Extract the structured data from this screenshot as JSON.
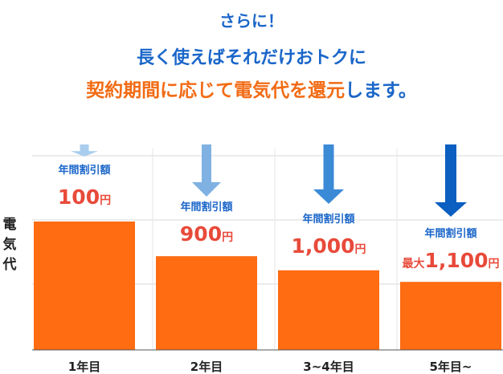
{
  "header": {
    "line1": "さらに！",
    "line2": "長く使えばそれだけおトクに",
    "line3_accent": "契約期間に応じて電気代を還元",
    "line3_rest": "します。"
  },
  "colors": {
    "blue": "#1a66c9",
    "orange": "#f26b14",
    "bar": "#ff6c12",
    "discount_red": "#e84a3a"
  },
  "chart_data": {
    "type": "bar",
    "ylabel": "電気代",
    "categories": [
      "1年目",
      "2年目",
      "3~4年目",
      "5年目~"
    ],
    "values": [
      100,
      73,
      62,
      53
    ],
    "value_note": "relative electricity cost (1年目 = 100)",
    "discount_label": "年間割引額",
    "discounts": [
      {
        "prefix": "",
        "amount": "100",
        "unit": "円"
      },
      {
        "prefix": "",
        "amount": "900",
        "unit": "円"
      },
      {
        "prefix": "",
        "amount": "1,000",
        "unit": "円"
      },
      {
        "prefix": "最大",
        "amount": "1,100",
        "unit": "円"
      }
    ],
    "arrow_colors": [
      "#a9cdee",
      "#7fb2e2",
      "#3b8ad6",
      "#0a5fc0"
    ],
    "arrow_sizes": [
      1,
      2,
      3,
      4
    ],
    "grid": true,
    "legend": "none"
  }
}
